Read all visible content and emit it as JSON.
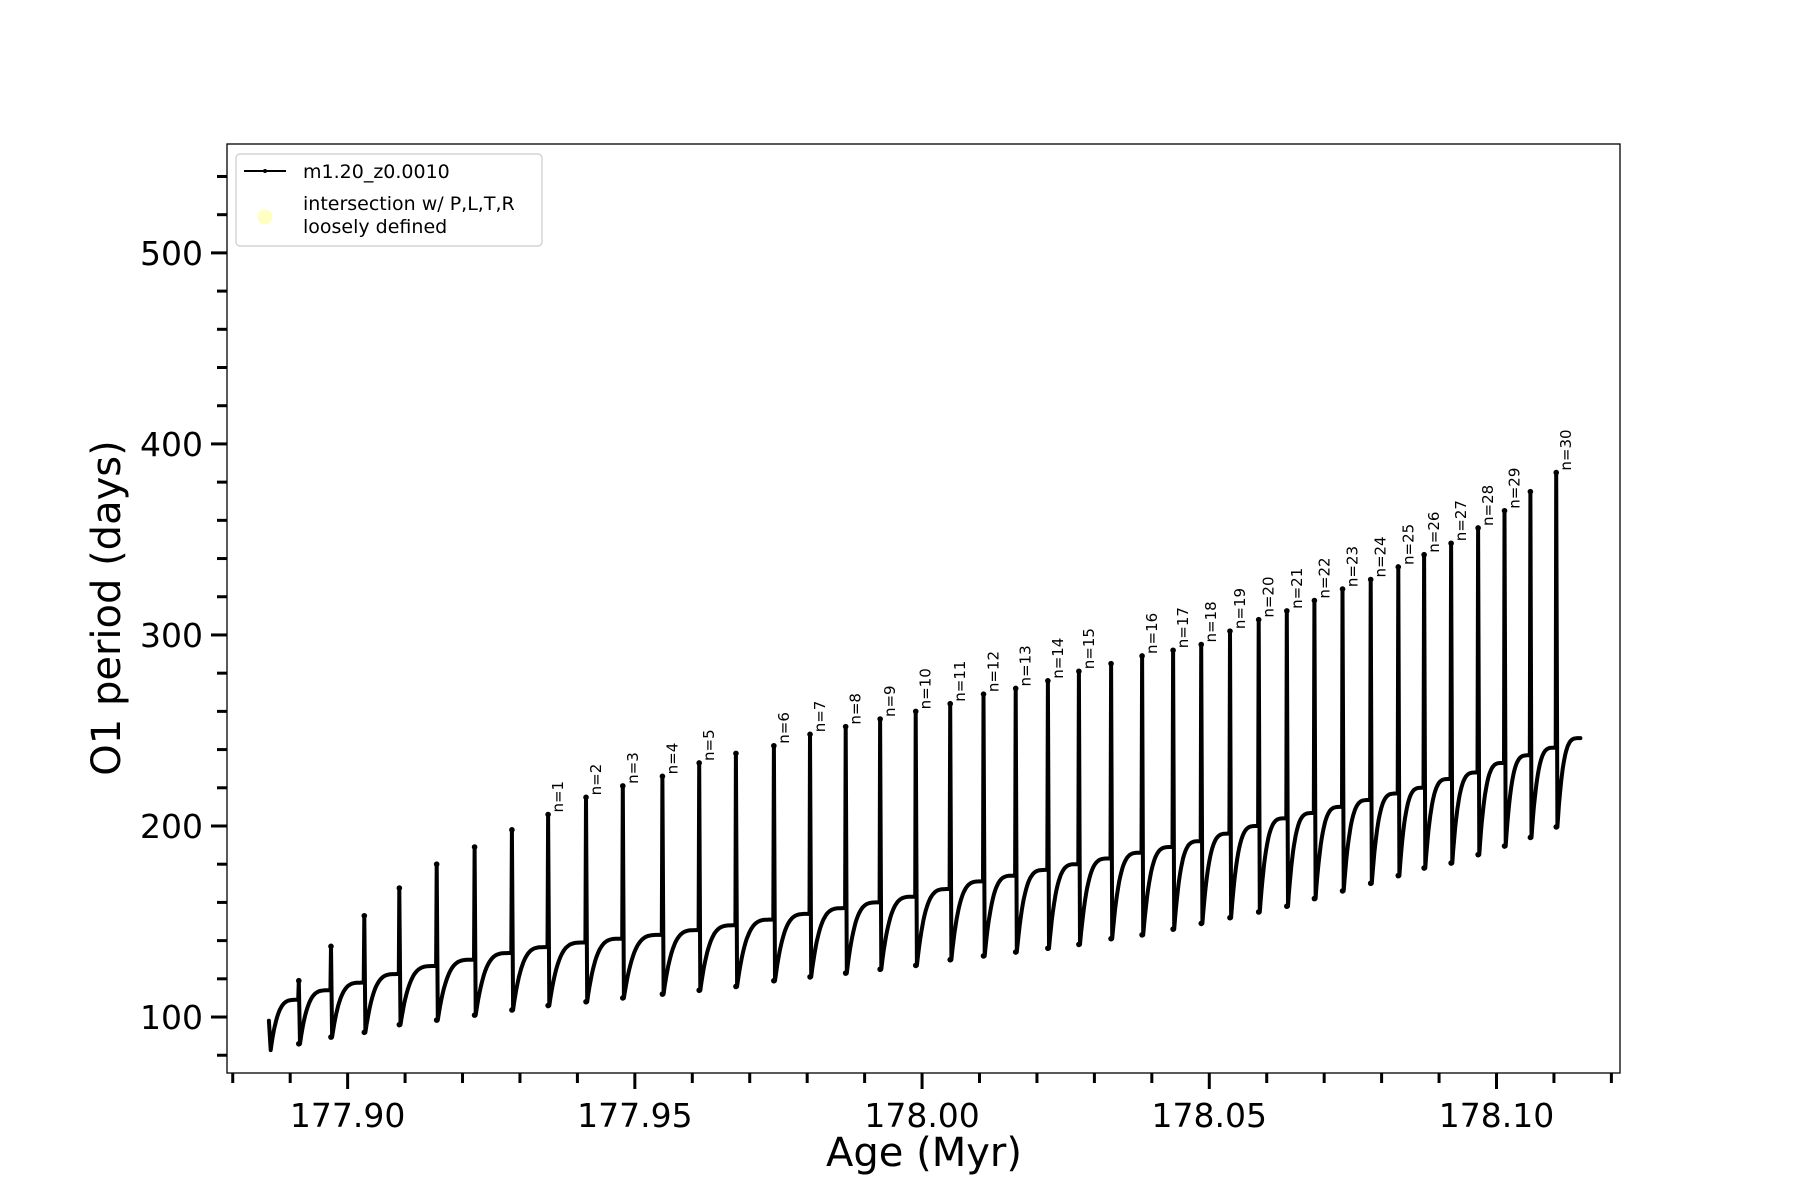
{
  "chart_data": {
    "type": "line",
    "title": "",
    "xlabel": "Age (Myr)",
    "ylabel": "O1 period (days)",
    "xlim": [
      177.879,
      178.1215
    ],
    "ylim": [
      70.7,
      557
    ],
    "xticks_major": [
      177.9,
      177.95,
      178.0,
      178.05,
      178.1
    ],
    "xtick_labels": [
      "177.90",
      "177.95",
      "178.00",
      "178.05",
      "178.10"
    ],
    "xticks_minor_step": 0.01,
    "yticks_major": [
      100,
      200,
      300,
      400,
      500
    ],
    "ytick_labels": [
      "100",
      "200",
      "300",
      "400",
      "500"
    ],
    "yticks_minor_step": 20,
    "grid": false,
    "legend_position": "top-left",
    "legend": [
      {
        "label": "m1.20_z0.0010",
        "kind": "line-with-markers",
        "color": "#000000"
      },
      {
        "label": "intersection w/ P,L,T,R\nloosely defined",
        "label_lines": [
          "intersection w/ P,L,T,R",
          "loosely defined"
        ],
        "kind": "marker",
        "color": "#ffffb3"
      }
    ],
    "series": [
      {
        "name": "m1.20_z0.0010",
        "color": "#000000",
        "start": {
          "age": 177.8863,
          "value": 98,
          "first_trough": 82.7
        },
        "end": {
          "age": 178.1146,
          "value": 246
        },
        "spikes": {
          "age": [
            177.8915,
            177.8971,
            177.9029,
            177.909,
            177.9155,
            177.9221,
            177.9286,
            177.9349,
            177.9415,
            177.9479,
            177.9548,
            177.9612,
            177.9676,
            177.9742,
            177.9805,
            177.9867,
            177.9927,
            177.9989,
            178.0049,
            178.0107,
            178.0163,
            178.0219,
            178.0273,
            178.0329,
            178.0383,
            178.0437,
            178.0486,
            178.0536,
            178.0586,
            178.0635,
            178.0683,
            178.0732,
            178.0781,
            178.0829,
            178.0874,
            178.0921,
            178.0968,
            178.1014,
            178.1059,
            178.1104
          ],
          "before": [
            109,
            114,
            118,
            122.5,
            126.7,
            130,
            133.5,
            136.6,
            139,
            141,
            143,
            145.5,
            148,
            151,
            154,
            157,
            160,
            163,
            167,
            171,
            174,
            177,
            180,
            183,
            186,
            189,
            192,
            196,
            200,
            204,
            206.8,
            210,
            213.6,
            217,
            220,
            224.6,
            228,
            233,
            237,
            241
          ],
          "peak": [
            119,
            137,
            153,
            167.5,
            180,
            189,
            198,
            206,
            215,
            221,
            226,
            233,
            238,
            242,
            248,
            252,
            256,
            260,
            264,
            269,
            272,
            276,
            281,
            285,
            289,
            292,
            295,
            302,
            308,
            312.6,
            318,
            324,
            329,
            335.6,
            342,
            348,
            356,
            365,
            375,
            385
          ],
          "trough": [
            86,
            89.5,
            92,
            96,
            98.4,
            101,
            103.7,
            106,
            108,
            110,
            112,
            114,
            116,
            119,
            121,
            123,
            125,
            127,
            130,
            132,
            134,
            136,
            138,
            141,
            143,
            146,
            149,
            152,
            155,
            158,
            162,
            166,
            170,
            174,
            178,
            180.6,
            185,
            189.5,
            194,
            199.5
          ],
          "label": [
            "",
            "",
            "",
            "",
            "",
            "",
            "",
            "n=1",
            "n=2",
            "n=3",
            "n=4",
            "n=5",
            "",
            "n=6",
            "n=7",
            "n=8",
            "n=9",
            "n=10",
            "n=11",
            "n=12",
            "n=13",
            "n=14",
            "n=15",
            "",
            "n=16",
            "n=17",
            "n=18",
            "n=19",
            "n=20",
            "n=21",
            "n=22",
            "n=23",
            "n=24",
            "n=25",
            "n=26",
            "n=27",
            "n=28",
            "n=29",
            "",
            "n=30"
          ]
        }
      }
    ]
  }
}
